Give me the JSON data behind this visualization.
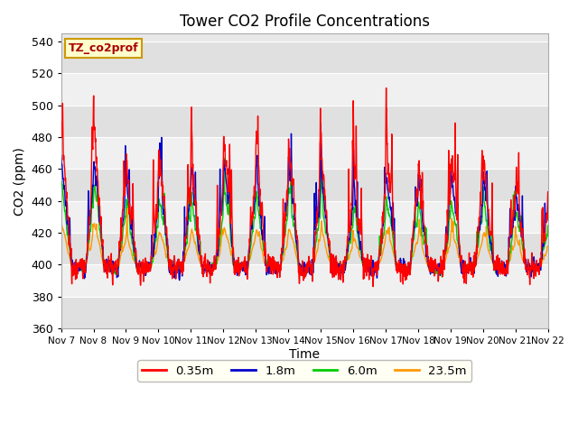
{
  "title": "Tower CO2 Profile Concentrations",
  "xlabel": "Time",
  "ylabel": "CO2 (ppm)",
  "ylim": [
    360,
    545
  ],
  "yticks": [
    360,
    380,
    400,
    420,
    440,
    460,
    480,
    500,
    520,
    540
  ],
  "xtick_labels": [
    "Nov 7",
    "Nov 8",
    "Nov 9",
    "Nov 10",
    "Nov 11",
    "Nov 12",
    "Nov 13",
    "Nov 14",
    "Nov 15",
    "Nov 16",
    "Nov 17",
    "Nov 18",
    "Nov 19",
    "Nov 20",
    "Nov 21",
    "Nov 22"
  ],
  "series_labels": [
    "0.35m",
    "1.8m",
    "6.0m",
    "23.5m"
  ],
  "series_colors": [
    "#ff0000",
    "#0000cc",
    "#00cc00",
    "#ff9900"
  ],
  "tag_label": "TZ_co2prof",
  "fig_bg_color": "#ffffff",
  "plot_bg_color": "#e8e8e8",
  "band_color_a": "#e0e0e0",
  "band_color_b": "#f0f0f0",
  "grid_color": "#ffffff",
  "legend_bg": "#ffffcc"
}
